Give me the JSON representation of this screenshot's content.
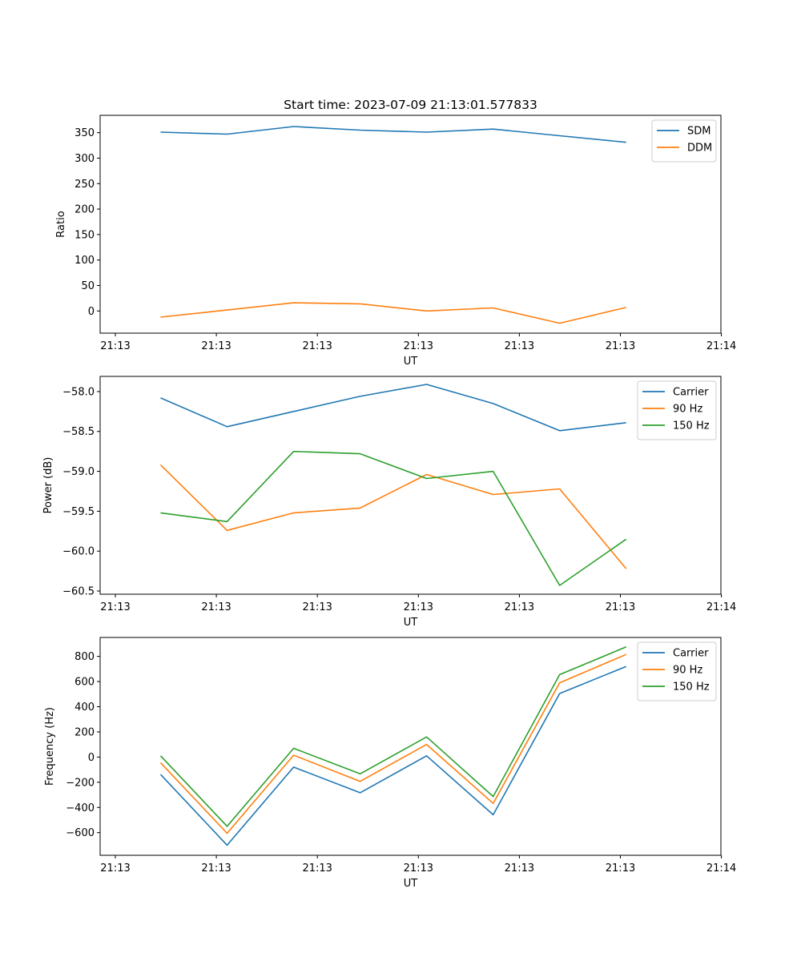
{
  "chart_data": [
    {
      "type": "line",
      "title": "Start time: 2023-07-09 21:13:01.577833",
      "xlabel": "UT",
      "ylabel": "Ratio",
      "x_tick_labels": [
        "21:13",
        "21:13",
        "21:13",
        "21:13",
        "21:13",
        "21:13",
        "21:14"
      ],
      "y_ticks": [
        0,
        50,
        100,
        150,
        200,
        250,
        300,
        350
      ],
      "y_tick_labels": [
        "0",
        "50",
        "100",
        "150",
        "200",
        "250",
        "300",
        "350"
      ],
      "ylim": [
        -43.5,
        384
      ],
      "xlim": [
        -0.54,
        8.7
      ],
      "x": [
        0.36,
        1.35,
        2.34,
        3.33,
        4.32,
        5.31,
        6.3,
        7.29
      ],
      "legend_position": "top-right",
      "series": [
        {
          "name": "SDM",
          "color": "#1f77b4",
          "values": [
            351,
            347,
            362,
            355,
            351,
            357,
            344,
            331
          ]
        },
        {
          "name": "DDM",
          "color": "#ff7f0e",
          "values": [
            -12,
            2,
            16,
            14,
            0,
            6,
            -24,
            7
          ]
        }
      ]
    },
    {
      "type": "line",
      "title": "",
      "xlabel": "UT",
      "ylabel": "Power (dB)",
      "x_tick_labels": [
        "21:13",
        "21:13",
        "21:13",
        "21:13",
        "21:13",
        "21:13",
        "21:14"
      ],
      "y_ticks": [
        -60.5,
        -60.0,
        -59.5,
        -59.0,
        -58.5,
        -58.0
      ],
      "y_tick_labels": [
        "−60.5",
        "−60.0",
        "−59.5",
        "−59.0",
        "−58.5",
        "−58.0"
      ],
      "ylim": [
        -60.54,
        -57.81
      ],
      "xlim": [
        -0.54,
        8.7
      ],
      "x": [
        0.36,
        1.35,
        2.34,
        3.33,
        4.32,
        5.31,
        6.3,
        7.29
      ],
      "legend_position": "top-right",
      "series": [
        {
          "name": "Carrier",
          "color": "#1f77b4",
          "values": [
            -58.08,
            -58.44,
            -58.25,
            -58.06,
            -57.91,
            -58.15,
            -58.49,
            -58.39
          ]
        },
        {
          "name": "90 Hz",
          "color": "#ff7f0e",
          "values": [
            -58.92,
            -59.74,
            -59.52,
            -59.46,
            -59.04,
            -59.29,
            -59.22,
            -60.22
          ]
        },
        {
          "name": "150 Hz",
          "color": "#2ca02c",
          "values": [
            -59.52,
            -59.63,
            -58.75,
            -58.78,
            -59.09,
            -59.0,
            -60.43,
            -59.85
          ]
        }
      ]
    },
    {
      "type": "line",
      "title": "",
      "xlabel": "UT",
      "ylabel": "Frequency (Hz)",
      "x_tick_labels": [
        "21:13",
        "21:13",
        "21:13",
        "21:13",
        "21:13",
        "21:13",
        "21:14"
      ],
      "y_ticks": [
        -600,
        -400,
        -200,
        0,
        200,
        400,
        600,
        800
      ],
      "y_tick_labels": [
        "−600",
        "−400",
        "−200",
        "0",
        "200",
        "400",
        "600",
        "800"
      ],
      "ylim": [
        -780,
        950
      ],
      "xlim": [
        -0.54,
        8.7
      ],
      "x": [
        0.36,
        1.35,
        2.34,
        3.33,
        4.32,
        5.31,
        6.3,
        7.29
      ],
      "legend_position": "top-right",
      "series": [
        {
          "name": "Carrier",
          "color": "#1f77b4",
          "values": [
            -138,
            -700,
            -80,
            -283,
            10,
            -458,
            505,
            720
          ]
        },
        {
          "name": "90 Hz",
          "color": "#ff7f0e",
          "values": [
            -45,
            -605,
            15,
            -193,
            100,
            -368,
            590,
            815
          ]
        },
        {
          "name": "150 Hz",
          "color": "#2ca02c",
          "values": [
            10,
            -550,
            70,
            -133,
            160,
            -313,
            655,
            875
          ]
        }
      ]
    }
  ]
}
